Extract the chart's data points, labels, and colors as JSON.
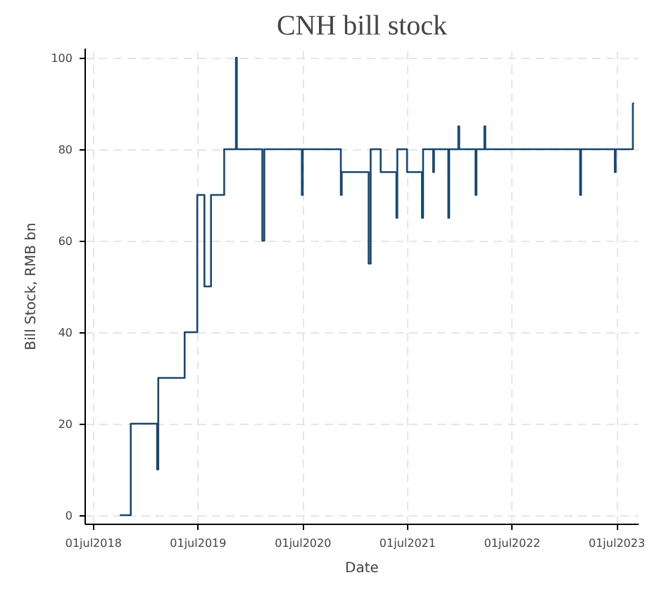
{
  "chart_data": {
    "type": "step",
    "title": "CNH bill stock",
    "xlabel": "Date",
    "ylabel": "Bill Stock, RMB bn",
    "x": [
      "2018-10-01",
      "2018-11-08",
      "2019-02-08",
      "2019-02-12",
      "2019-05-15",
      "2019-06-28",
      "2019-07-23",
      "2019-08-15",
      "2019-09-30",
      "2019-11-10",
      "2019-11-13",
      "2020-02-10",
      "2020-02-17",
      "2020-06-27",
      "2020-06-30",
      "2020-11-10",
      "2020-11-13",
      "2021-02-15",
      "2021-02-22",
      "2021-03-29",
      "2021-05-23",
      "2021-05-26",
      "2021-06-29",
      "2021-08-20",
      "2021-08-24",
      "2021-09-28",
      "2021-10-01",
      "2021-11-20",
      "2021-11-23",
      "2021-12-25",
      "2021-12-28",
      "2022-02-23",
      "2022-02-26",
      "2022-03-26",
      "2022-03-29",
      "2023-02-23",
      "2023-02-26",
      "2023-06-24",
      "2023-06-27",
      "2023-08-26",
      "2023-08-30"
    ],
    "series": [
      {
        "color": "#1a476f",
        "values": [
          0,
          20,
          10,
          30,
          40,
          70,
          50,
          70,
          80,
          100,
          80,
          60,
          80,
          70,
          80,
          70,
          75,
          55,
          80,
          75,
          65,
          80,
          75,
          65,
          80,
          75,
          80,
          65,
          80,
          85,
          80,
          70,
          80,
          85,
          80,
          70,
          80,
          75,
          80,
          90,
          90
        ]
      }
    ],
    "xlim": [
      "2018-06-02",
      "2023-09-15"
    ],
    "xticks": [
      {
        "value": "2018-07-01",
        "label": "01jul2018"
      },
      {
        "value": "2019-07-01",
        "label": "01jul2019"
      },
      {
        "value": "2020-07-01",
        "label": "01jul2020"
      },
      {
        "value": "2021-07-01",
        "label": "01jul2021"
      },
      {
        "value": "2022-07-01",
        "label": "01jul2022"
      },
      {
        "value": "2023-07-01",
        "label": "01jul2023"
      }
    ],
    "ylim": [
      -2,
      102
    ],
    "yticks": [
      0,
      20,
      40,
      60,
      80,
      100
    ],
    "grid": true
  }
}
